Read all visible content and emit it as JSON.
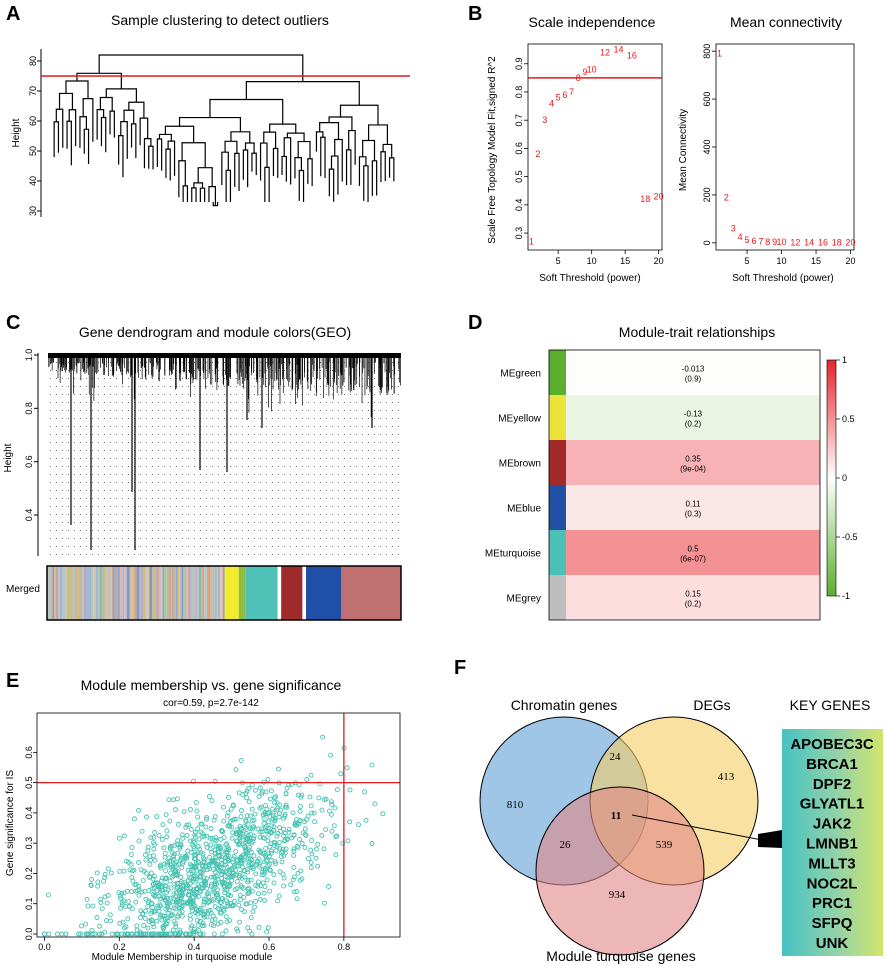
{
  "panels": {
    "A": "A",
    "B": "B",
    "C": "C",
    "D": "D",
    "E": "E",
    "F": "F"
  },
  "chart_data": [
    {
      "id": "A",
      "type": "dendrogram",
      "title": "Sample clustering to detect outliers",
      "ylabel": "Height",
      "yticks": [
        30,
        40,
        50,
        60,
        70,
        80
      ],
      "ylim": [
        28,
        84
      ],
      "cut_height": 75
    },
    {
      "id": "B1",
      "type": "scatter",
      "title": "Scale independence",
      "xlabel": "Soft Threshold (power)",
      "ylabel": "Scale Free Topology Model Fit,signed R^2",
      "xticks": [
        5,
        10,
        15,
        20
      ],
      "yticks": [
        0.3,
        0.4,
        0.5,
        0.6,
        0.7,
        0.8,
        0.9
      ],
      "xlim": [
        0.5,
        20.5
      ],
      "ylim": [
        0.24,
        0.97
      ],
      "threshold": 0.85,
      "points": [
        {
          "x": 1,
          "y": 0.27,
          "label": "1"
        },
        {
          "x": 2,
          "y": 0.58,
          "label": "2"
        },
        {
          "x": 3,
          "y": 0.7,
          "label": "3"
        },
        {
          "x": 4,
          "y": 0.76,
          "label": "4"
        },
        {
          "x": 5,
          "y": 0.78,
          "label": "5"
        },
        {
          "x": 6,
          "y": 0.79,
          "label": "6"
        },
        {
          "x": 7,
          "y": 0.8,
          "label": "7"
        },
        {
          "x": 8,
          "y": 0.85,
          "label": "8"
        },
        {
          "x": 9,
          "y": 0.87,
          "label": "9"
        },
        {
          "x": 10,
          "y": 0.88,
          "label": "10"
        },
        {
          "x": 12,
          "y": 0.94,
          "label": "12"
        },
        {
          "x": 14,
          "y": 0.95,
          "label": "14"
        },
        {
          "x": 16,
          "y": 0.93,
          "label": "16"
        },
        {
          "x": 18,
          "y": 0.42,
          "label": "18"
        },
        {
          "x": 20,
          "y": 0.43,
          "label": "20"
        }
      ]
    },
    {
      "id": "B2",
      "type": "scatter",
      "title": "Mean connectivity",
      "xlabel": "Soft Threshold (power)",
      "ylabel": "Mean Connectivity",
      "xticks": [
        5,
        10,
        15,
        20
      ],
      "yticks": [
        0,
        200,
        400,
        600,
        800
      ],
      "xlim": [
        0.5,
        20.5
      ],
      "ylim": [
        -30,
        830
      ],
      "points": [
        {
          "x": 1,
          "y": 790,
          "label": "1"
        },
        {
          "x": 2,
          "y": 190,
          "label": "2"
        },
        {
          "x": 3,
          "y": 60,
          "label": "3"
        },
        {
          "x": 4,
          "y": 25,
          "label": "4"
        },
        {
          "x": 5,
          "y": 12,
          "label": "5"
        },
        {
          "x": 6,
          "y": 7,
          "label": "6"
        },
        {
          "x": 7,
          "y": 5,
          "label": "7"
        },
        {
          "x": 8,
          "y": 4,
          "label": "8"
        },
        {
          "x": 9,
          "y": 3,
          "label": "9"
        },
        {
          "x": 10,
          "y": 3,
          "label": "10"
        },
        {
          "x": 12,
          "y": 2,
          "label": "12"
        },
        {
          "x": 14,
          "y": 2,
          "label": "14"
        },
        {
          "x": 16,
          "y": 2,
          "label": "16"
        },
        {
          "x": 18,
          "y": 2,
          "label": "18"
        },
        {
          "x": 20,
          "y": 2,
          "label": "20"
        }
      ]
    },
    {
      "id": "C",
      "type": "dendrogram",
      "title": "Gene dendrogram and module colors(GEO)",
      "ylabel": "Height",
      "yticks": [
        0.4,
        0.6,
        0.8,
        1.0
      ],
      "ylim": [
        0.25,
        1.0
      ],
      "bar_label": "Merged",
      "bar_segments": [
        {
          "color": "#F2EB2E",
          "w": 0.04
        },
        {
          "color": "#8FBF3F",
          "w": 0.02
        },
        {
          "color": "#4FC1B7",
          "w": 0.09
        },
        {
          "color": "#ffffff",
          "w": 0.01
        },
        {
          "color": "#9E2A2A",
          "w": 0.06
        },
        {
          "color": "#ffffff",
          "w": 0.01
        },
        {
          "color": "#1F4FA6",
          "w": 0.1
        }
      ]
    },
    {
      "id": "D",
      "type": "heatmap",
      "title": "Module-trait relationships",
      "rows": [
        {
          "module": "MEgreen",
          "color": "#5BAF2E",
          "r": -0.013,
          "text": "-0.013",
          "p": "(0.9)"
        },
        {
          "module": "MEyellow",
          "color": "#ECE33A",
          "r": -0.13,
          "text": "-0.13",
          "p": "(0.2)"
        },
        {
          "module": "MEbrown",
          "color": "#A22A2A",
          "r": 0.35,
          "text": "0.35",
          "p": "(9e-04)"
        },
        {
          "module": "MEblue",
          "color": "#2250A5",
          "r": 0.11,
          "text": "0.11",
          "p": "(0.3)"
        },
        {
          "module": "MEturquoise",
          "color": "#4DC0B5",
          "r": 0.5,
          "text": "0.5",
          "p": "(6e-07)"
        },
        {
          "module": "MEgrey",
          "color": "#BEBEBE",
          "r": 0.15,
          "text": "0.15",
          "p": "(0.2)"
        }
      ],
      "scale_ticks": [
        "1",
        "0.5",
        "0",
        "-0.5",
        "-1"
      ]
    },
    {
      "id": "E",
      "type": "scatter",
      "title": "Module membership vs. gene significance",
      "subtitle": "cor=0.59, p=2.7e-142",
      "xlabel": "Module Membership in turquoise module",
      "ylabel": "Gene significance for IS",
      "xticks": [
        0.0,
        0.2,
        0.4,
        0.6,
        0.8
      ],
      "yticks": [
        0.0,
        0.1,
        0.2,
        0.3,
        0.4,
        0.5,
        0.6
      ],
      "xlim": [
        -0.02,
        0.95
      ],
      "ylim": [
        -0.01,
        0.73
      ],
      "vline": 0.8,
      "hline": 0.5,
      "n_points": 1200,
      "point_color": "#45C2B1"
    },
    {
      "id": "F",
      "type": "venn",
      "sets": [
        "Chromatin genes",
        "DEGs",
        "Module  turquoise genes"
      ],
      "counts": {
        "chromatin_only": "810",
        "degs_only": "413",
        "module_only": "934",
        "chromatin_degs": "24",
        "chromatin_module": "26",
        "degs_module": "539",
        "all": "11"
      },
      "key_title": "KEY GENES",
      "key_genes": [
        "APOBEC3C",
        "BRCA1",
        "DPF2",
        "GLYATL1",
        "JAK2",
        "LMNB1",
        "MLLT3",
        "NOC2L",
        "PRC1",
        "SFPQ",
        "UNK"
      ]
    }
  ]
}
